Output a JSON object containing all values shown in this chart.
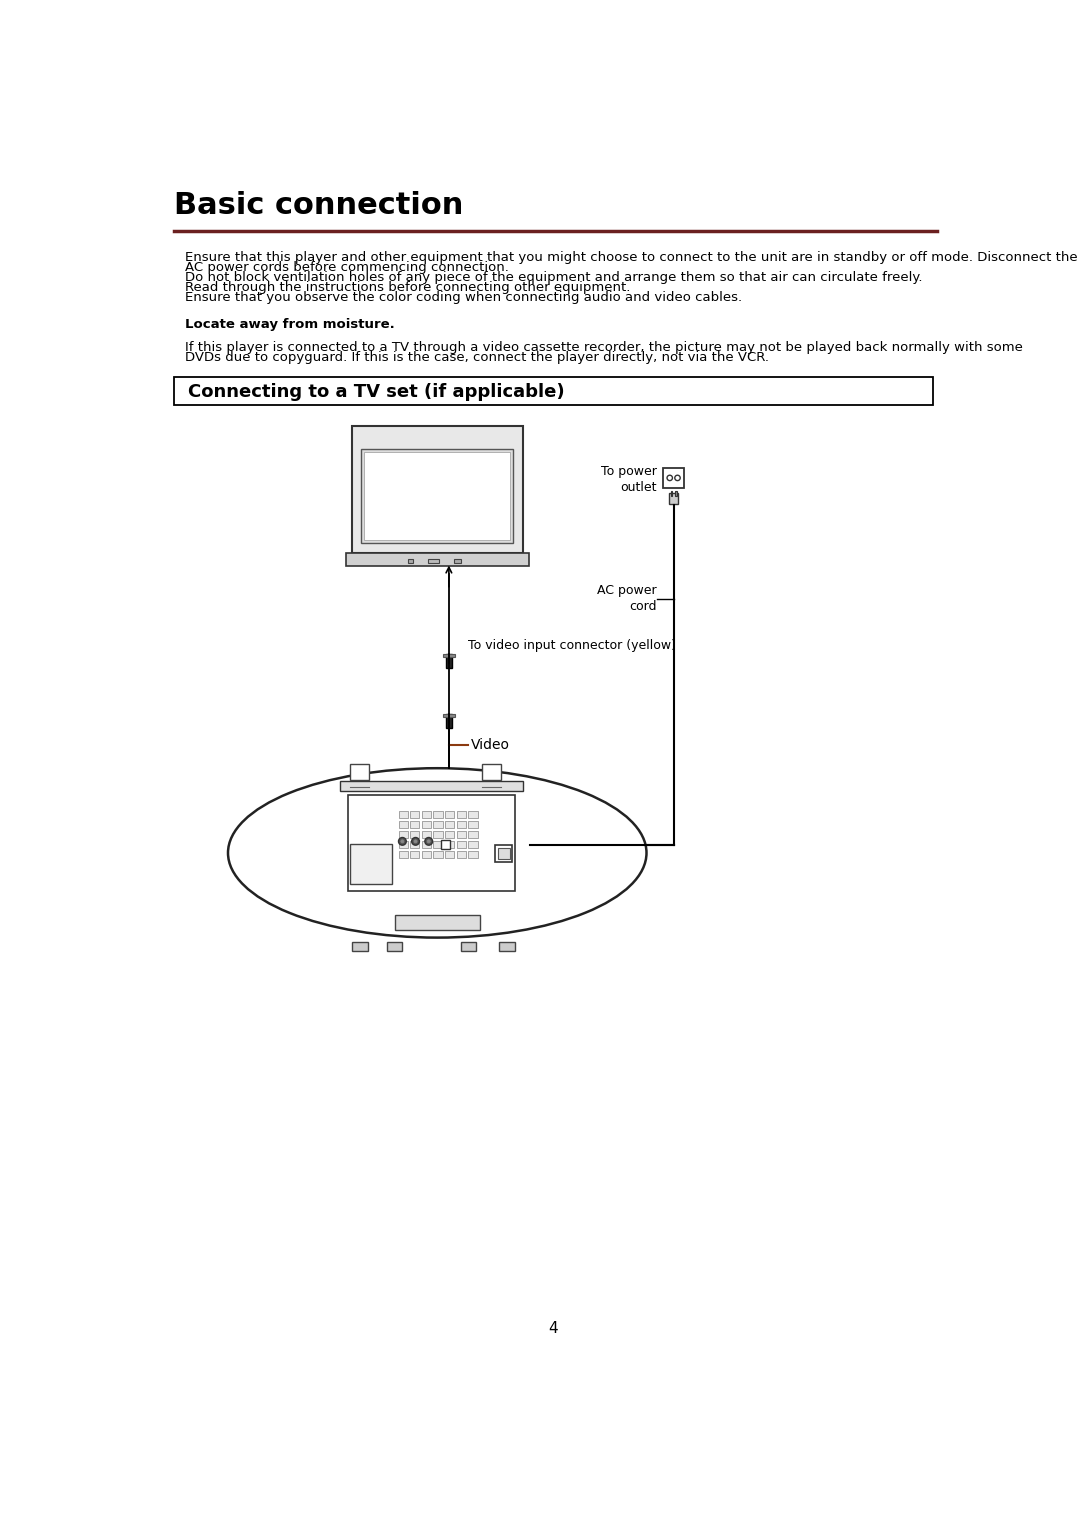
{
  "title": "Basic connection",
  "title_fontsize": 22,
  "line_color": "#6B2020",
  "bg_color": "#ffffff",
  "text_color": "#000000",
  "intro_lines": [
    "Ensure that this player and other equipment that you might choose to connect to the unit are in standby or off mode. Disconnect the",
    "AC power cords before commencing connection.",
    "Do not block ventilation holes of any piece of the equipment and arrange them so that air can circulate freely.",
    "Read through the instructions before connecting other equipment.",
    "Ensure that you observe the color coding when connecting audio and video cables."
  ],
  "locate_text": "Locate away from moisture.",
  "vcr_line1": "If this player is connected to a TV through a video cassette recorder, the picture may not be played back normally with some",
  "vcr_line2": "DVDs due to copyguard. If this is the case, connect the player directly, not via the VCR.",
  "section_title": "Connecting to a TV set (if applicable)",
  "section_title_fontsize": 13,
  "label_to_power": "To power\noutlet",
  "label_ac_cord": "AC power\ncord",
  "label_video_input": "To video input connector (yellow)",
  "label_video": "Video",
  "page_number": "4",
  "font_size_body": 9.5,
  "font_size_labels": 9
}
